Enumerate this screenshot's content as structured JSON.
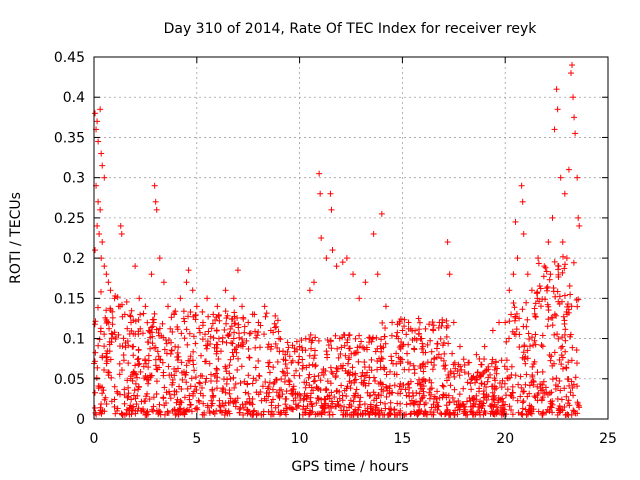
{
  "chart_data": {
    "type": "scatter",
    "title": "Day 310 of 2014, Rate Of TEC Index for receiver reyk",
    "xlabel": "GPS time / hours",
    "ylabel": "ROTI / TECUs",
    "xlim": [
      0,
      25
    ],
    "ylim": [
      0,
      0.45
    ],
    "x_ticks": [
      "0",
      "5",
      "10",
      "15",
      "20",
      "25"
    ],
    "y_ticks": [
      "0",
      "0.05",
      "0.1",
      "0.15",
      "0.2",
      "0.25",
      "0.3",
      "0.35",
      "0.4",
      "0.45"
    ],
    "x_tick_values": [
      0,
      5,
      10,
      15,
      20,
      25
    ],
    "y_tick_values": [
      0,
      0.05,
      0.1,
      0.15,
      0.2,
      0.25,
      0.3,
      0.35,
      0.4,
      0.45
    ],
    "grid": true,
    "marker": "+",
    "color": "#ff0000",
    "series": [
      {
        "values_note": "",
        "points": [
          [
            0.05,
            0.38
          ],
          [
            0.15,
            0.37
          ],
          [
            0.3,
            0.385
          ],
          [
            0.1,
            0.36
          ],
          [
            0.2,
            0.345
          ],
          [
            0.35,
            0.33
          ],
          [
            0.4,
            0.315
          ],
          [
            0.5,
            0.3
          ],
          [
            0.1,
            0.29
          ],
          [
            0.2,
            0.27
          ],
          [
            0.3,
            0.26
          ],
          [
            0.15,
            0.24
          ],
          [
            0.25,
            0.23
          ],
          [
            0.4,
            0.22
          ],
          [
            0.05,
            0.21
          ],
          [
            0.35,
            0.2
          ],
          [
            0.5,
            0.19
          ],
          [
            0.6,
            0.18
          ],
          [
            0.7,
            0.17
          ],
          [
            0.8,
            0.16
          ],
          [
            1.0,
            0.15
          ],
          [
            1.2,
            0.14
          ],
          [
            1.3,
            0.24
          ],
          [
            1.35,
            0.23
          ],
          [
            1.5,
            0.13
          ],
          [
            1.8,
            0.12
          ],
          [
            2.0,
            0.19
          ],
          [
            2.2,
            0.15
          ],
          [
            2.5,
            0.14
          ],
          [
            2.8,
            0.18
          ],
          [
            2.95,
            0.29
          ],
          [
            3.0,
            0.27
          ],
          [
            3.05,
            0.26
          ],
          [
            3.2,
            0.2
          ],
          [
            3.4,
            0.17
          ],
          [
            3.6,
            0.14
          ],
          [
            3.9,
            0.13
          ],
          [
            4.2,
            0.15
          ],
          [
            4.5,
            0.17
          ],
          [
            4.6,
            0.185
          ],
          [
            4.8,
            0.16
          ],
          [
            5.0,
            0.14
          ],
          [
            5.3,
            0.12
          ],
          [
            5.5,
            0.15
          ],
          [
            5.8,
            0.13
          ],
          [
            6.0,
            0.14
          ],
          [
            6.4,
            0.16
          ],
          [
            6.8,
            0.15
          ],
          [
            7.0,
            0.185
          ],
          [
            7.2,
            0.14
          ],
          [
            7.5,
            0.12
          ],
          [
            7.8,
            0.13
          ],
          [
            8.0,
            0.12
          ],
          [
            8.3,
            0.14
          ],
          [
            8.6,
            0.11
          ],
          [
            9.0,
            0.1
          ],
          [
            9.3,
            0.08
          ],
          [
            9.6,
            0.07
          ],
          [
            10.0,
            0.09
          ],
          [
            10.3,
            0.1
          ],
          [
            10.5,
            0.16
          ],
          [
            10.7,
            0.17
          ],
          [
            10.95,
            0.305
          ],
          [
            11.0,
            0.28
          ],
          [
            11.05,
            0.225
          ],
          [
            11.3,
            0.2
          ],
          [
            11.5,
            0.28
          ],
          [
            11.55,
            0.26
          ],
          [
            11.6,
            0.21
          ],
          [
            11.8,
            0.19
          ],
          [
            12.1,
            0.195
          ],
          [
            12.3,
            0.2
          ],
          [
            12.6,
            0.18
          ],
          [
            12.9,
            0.15
          ],
          [
            13.2,
            0.17
          ],
          [
            13.6,
            0.23
          ],
          [
            13.8,
            0.18
          ],
          [
            14.0,
            0.255
          ],
          [
            14.2,
            0.14
          ],
          [
            14.5,
            0.12
          ],
          [
            14.8,
            0.1
          ],
          [
            15.0,
            0.11
          ],
          [
            15.3,
            0.12
          ],
          [
            15.6,
            0.1
          ],
          [
            16.0,
            0.09
          ],
          [
            16.5,
            0.11
          ],
          [
            16.8,
            0.12
          ],
          [
            17.2,
            0.22
          ],
          [
            17.3,
            0.18
          ],
          [
            17.5,
            0.12
          ],
          [
            17.8,
            0.09
          ],
          [
            18.2,
            0.07
          ],
          [
            18.6,
            0.08
          ],
          [
            19.0,
            0.09
          ],
          [
            19.4,
            0.11
          ],
          [
            19.7,
            0.12
          ],
          [
            20.0,
            0.12
          ],
          [
            20.2,
            0.16
          ],
          [
            20.4,
            0.18
          ],
          [
            20.5,
            0.245
          ],
          [
            20.6,
            0.2
          ],
          [
            20.8,
            0.29
          ],
          [
            20.85,
            0.27
          ],
          [
            20.9,
            0.23
          ],
          [
            21.1,
            0.18
          ],
          [
            21.3,
            0.16
          ],
          [
            21.6,
            0.2
          ],
          [
            21.9,
            0.19
          ],
          [
            22.1,
            0.22
          ],
          [
            22.3,
            0.25
          ],
          [
            22.4,
            0.36
          ],
          [
            22.5,
            0.41
          ],
          [
            22.55,
            0.385
          ],
          [
            22.7,
            0.3
          ],
          [
            22.9,
            0.28
          ],
          [
            23.1,
            0.31
          ],
          [
            23.2,
            0.43
          ],
          [
            23.25,
            0.44
          ],
          [
            23.3,
            0.4
          ],
          [
            23.35,
            0.375
          ],
          [
            23.4,
            0.355
          ],
          [
            23.5,
            0.3
          ],
          [
            23.55,
            0.25
          ],
          [
            23.6,
            0.24
          ],
          [
            23.0,
            0.2
          ],
          [
            22.8,
            0.22
          ],
          [
            22.6,
            0.19
          ],
          [
            22.2,
            0.18
          ]
        ]
      }
    ]
  }
}
